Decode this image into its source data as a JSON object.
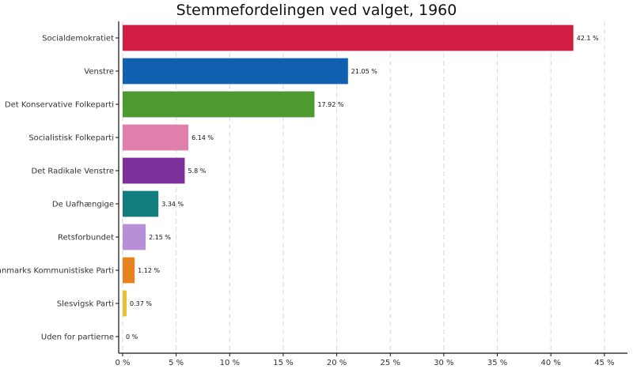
{
  "chart_data": {
    "type": "bar",
    "orientation": "horizontal",
    "title": "Stemmefordelingen ved valget, 1960",
    "xlabel": "",
    "ylabel": "",
    "xlim": [
      0,
      47
    ],
    "xticks": [
      0,
      5,
      10,
      15,
      20,
      25,
      30,
      35,
      40,
      45
    ],
    "tick_suffix": " %",
    "grid": "vertical-dashed",
    "categories": [
      "Socialdemokratiet",
      "Venstre",
      "Det Konservative Folkeparti",
      "Socialistisk Folkeparti",
      "Det Radikale Venstre",
      "De Uafhængige",
      "Retsforbundet",
      "Danmarks Kommunistiske Parti",
      "Slesvigsk Parti",
      "Uden for partierne"
    ],
    "values": [
      42.1,
      21.05,
      17.92,
      6.14,
      5.8,
      3.34,
      2.15,
      1.12,
      0.37,
      0
    ],
    "data_labels": [
      "42.1 %",
      "21.05 %",
      "17.92 %",
      "6.14 %",
      "5.8 %",
      "3.34 %",
      "2.15 %",
      "1.12 %",
      "0.37 %",
      "0 %"
    ],
    "colors": [
      "#d31c42",
      "#1260b0",
      "#4d9a31",
      "#e07fab",
      "#7d2f9c",
      "#137d7e",
      "#b78fd6",
      "#e8821e",
      "#e8c12f",
      "#999999"
    ]
  }
}
